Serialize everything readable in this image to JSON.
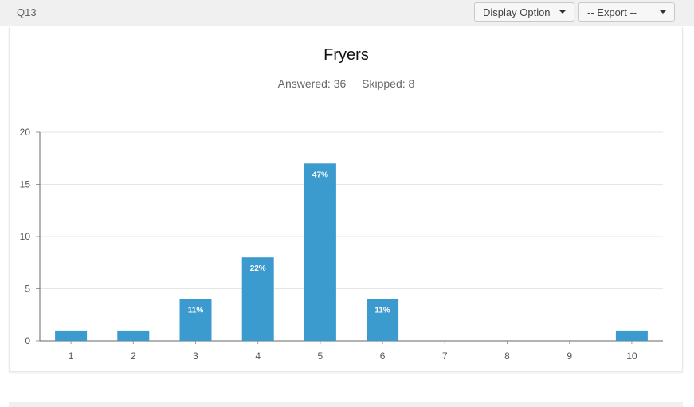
{
  "header": {
    "question_label": "Q13",
    "display_option_label": "Display Option",
    "export_label": "-- Export --"
  },
  "stats": {
    "answered": "Answered: 36",
    "skipped": "Skipped: 8"
  },
  "colors": {
    "bar": "#3b9ace",
    "header_bg": "#f0f0f0"
  },
  "chart_data": {
    "type": "bar",
    "title": "Fryers",
    "categories": [
      "1",
      "2",
      "3",
      "4",
      "5",
      "6",
      "7",
      "8",
      "9",
      "10"
    ],
    "values": [
      1,
      1,
      4,
      8,
      17,
      4,
      0,
      0,
      0,
      1
    ],
    "data_labels": [
      "",
      "",
      "11%",
      "22%",
      "47%",
      "11%",
      "",
      "",
      "",
      ""
    ],
    "ylim": [
      0,
      20
    ],
    "yticks": [
      0,
      5,
      10,
      15,
      20
    ],
    "grid": true,
    "xlabel": "",
    "ylabel": ""
  }
}
